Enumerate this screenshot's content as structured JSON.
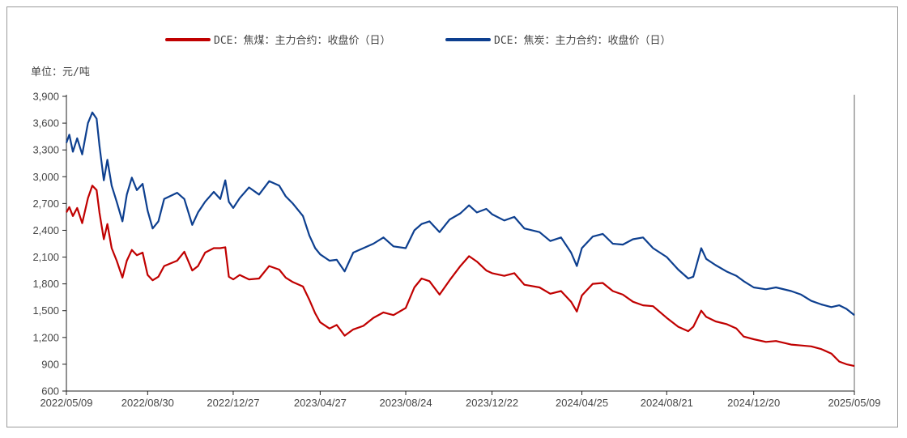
{
  "chart_data": {
    "type": "line",
    "unit_label": "单位：元/吨",
    "ylim": [
      600,
      3900
    ],
    "y_ticks": [
      "3,900",
      "3,600",
      "3,300",
      "3,000",
      "2,700",
      "2,400",
      "2,100",
      "1,800",
      "1,500",
      "1,200",
      "900",
      "600"
    ],
    "y_tick_values": [
      3900,
      3600,
      3300,
      3000,
      2700,
      2400,
      2100,
      1800,
      1500,
      1200,
      900,
      600
    ],
    "x_ticks": [
      "2022/05/09",
      "2022/08/30",
      "2022/12/27",
      "2023/04/27",
      "2023/08/24",
      "2023/12/22",
      "2024/04/25",
      "2024/08/21",
      "2024/12/20",
      "2025/05/09"
    ],
    "x_tick_dates": [
      "2022-05-09",
      "2022-08-30",
      "2022-12-27",
      "2023-04-27",
      "2023-08-24",
      "2023-12-22",
      "2024-04-25",
      "2024-08-21",
      "2024-12-20",
      "2025-05-09"
    ],
    "grid": false,
    "legend_position": "top",
    "series": [
      {
        "name": "DCE：焦煤：主力合约：收盘价（日）",
        "color": "#c00000",
        "points": [
          [
            "2022-05-09",
            2600
          ],
          [
            "2022-05-13",
            2660
          ],
          [
            "2022-05-18",
            2560
          ],
          [
            "2022-05-24",
            2650
          ],
          [
            "2022-05-31",
            2480
          ],
          [
            "2022-06-08",
            2760
          ],
          [
            "2022-06-14",
            2900
          ],
          [
            "2022-06-20",
            2850
          ],
          [
            "2022-06-24",
            2600
          ],
          [
            "2022-06-30",
            2300
          ],
          [
            "2022-07-05",
            2470
          ],
          [
            "2022-07-11",
            2200
          ],
          [
            "2022-07-18",
            2060
          ],
          [
            "2022-07-26",
            1870
          ],
          [
            "2022-08-01",
            2060
          ],
          [
            "2022-08-08",
            2180
          ],
          [
            "2022-08-15",
            2120
          ],
          [
            "2022-08-23",
            2150
          ],
          [
            "2022-08-30",
            1900
          ],
          [
            "2022-09-06",
            1840
          ],
          [
            "2022-09-14",
            1880
          ],
          [
            "2022-09-22",
            2000
          ],
          [
            "2022-10-10",
            2060
          ],
          [
            "2022-10-20",
            2160
          ],
          [
            "2022-10-31",
            1950
          ],
          [
            "2022-11-08",
            2000
          ],
          [
            "2022-11-18",
            2150
          ],
          [
            "2022-11-30",
            2200
          ],
          [
            "2022-12-09",
            2200
          ],
          [
            "2022-12-16",
            2210
          ],
          [
            "2022-12-21",
            1880
          ],
          [
            "2022-12-27",
            1850
          ],
          [
            "2023-01-05",
            1900
          ],
          [
            "2023-01-18",
            1850
          ],
          [
            "2023-02-01",
            1860
          ],
          [
            "2023-02-15",
            2000
          ],
          [
            "2023-03-01",
            1960
          ],
          [
            "2023-03-10",
            1870
          ],
          [
            "2023-03-20",
            1820
          ],
          [
            "2023-04-03",
            1770
          ],
          [
            "2023-04-12",
            1620
          ],
          [
            "2023-04-20",
            1470
          ],
          [
            "2023-04-27",
            1370
          ],
          [
            "2023-05-10",
            1300
          ],
          [
            "2023-05-20",
            1340
          ],
          [
            "2023-05-31",
            1220
          ],
          [
            "2023-06-12",
            1290
          ],
          [
            "2023-06-26",
            1330
          ],
          [
            "2023-07-10",
            1420
          ],
          [
            "2023-07-24",
            1480
          ],
          [
            "2023-08-07",
            1450
          ],
          [
            "2023-08-24",
            1530
          ],
          [
            "2023-09-05",
            1760
          ],
          [
            "2023-09-15",
            1860
          ],
          [
            "2023-09-26",
            1830
          ],
          [
            "2023-10-10",
            1680
          ],
          [
            "2023-10-24",
            1840
          ],
          [
            "2023-11-08",
            2000
          ],
          [
            "2023-11-20",
            2110
          ],
          [
            "2023-12-01",
            2050
          ],
          [
            "2023-12-14",
            1950
          ],
          [
            "2023-12-22",
            1920
          ],
          [
            "2024-01-08",
            1890
          ],
          [
            "2024-01-22",
            1920
          ],
          [
            "2024-02-05",
            1790
          ],
          [
            "2024-02-26",
            1760
          ],
          [
            "2024-03-12",
            1690
          ],
          [
            "2024-03-27",
            1720
          ],
          [
            "2024-04-10",
            1600
          ],
          [
            "2024-04-18",
            1490
          ],
          [
            "2024-04-25",
            1670
          ],
          [
            "2024-05-10",
            1800
          ],
          [
            "2024-05-24",
            1810
          ],
          [
            "2024-06-07",
            1720
          ],
          [
            "2024-06-21",
            1680
          ],
          [
            "2024-07-05",
            1600
          ],
          [
            "2024-07-19",
            1560
          ],
          [
            "2024-08-02",
            1550
          ],
          [
            "2024-08-21",
            1420
          ],
          [
            "2024-09-06",
            1320
          ],
          [
            "2024-09-20",
            1270
          ],
          [
            "2024-09-27",
            1320
          ],
          [
            "2024-10-08",
            1500
          ],
          [
            "2024-10-15",
            1430
          ],
          [
            "2024-10-28",
            1380
          ],
          [
            "2024-11-12",
            1350
          ],
          [
            "2024-11-26",
            1300
          ],
          [
            "2024-12-06",
            1210
          ],
          [
            "2024-12-20",
            1180
          ],
          [
            "2025-01-06",
            1150
          ],
          [
            "2025-01-20",
            1160
          ],
          [
            "2025-02-10",
            1120
          ],
          [
            "2025-02-24",
            1110
          ],
          [
            "2025-03-10",
            1100
          ],
          [
            "2025-03-24",
            1070
          ],
          [
            "2025-04-07",
            1020
          ],
          [
            "2025-04-18",
            930
          ],
          [
            "2025-04-28",
            900
          ],
          [
            "2025-05-09",
            880
          ]
        ]
      },
      {
        "name": "DCE：焦炭：主力合约：收盘价（日）",
        "color": "#0d3f8f",
        "points": [
          [
            "2022-05-09",
            3380
          ],
          [
            "2022-05-13",
            3470
          ],
          [
            "2022-05-18",
            3280
          ],
          [
            "2022-05-24",
            3430
          ],
          [
            "2022-05-31",
            3250
          ],
          [
            "2022-06-08",
            3600
          ],
          [
            "2022-06-14",
            3720
          ],
          [
            "2022-06-20",
            3650
          ],
          [
            "2022-06-24",
            3350
          ],
          [
            "2022-06-30",
            2960
          ],
          [
            "2022-07-05",
            3190
          ],
          [
            "2022-07-11",
            2900
          ],
          [
            "2022-07-18",
            2720
          ],
          [
            "2022-07-26",
            2500
          ],
          [
            "2022-08-01",
            2800
          ],
          [
            "2022-08-08",
            2990
          ],
          [
            "2022-08-15",
            2850
          ],
          [
            "2022-08-23",
            2920
          ],
          [
            "2022-08-30",
            2620
          ],
          [
            "2022-09-06",
            2420
          ],
          [
            "2022-09-14",
            2500
          ],
          [
            "2022-09-22",
            2750
          ],
          [
            "2022-10-10",
            2820
          ],
          [
            "2022-10-20",
            2750
          ],
          [
            "2022-10-31",
            2460
          ],
          [
            "2022-11-08",
            2600
          ],
          [
            "2022-11-18",
            2720
          ],
          [
            "2022-11-30",
            2830
          ],
          [
            "2022-12-09",
            2750
          ],
          [
            "2022-12-16",
            2960
          ],
          [
            "2022-12-21",
            2720
          ],
          [
            "2022-12-27",
            2650
          ],
          [
            "2023-01-05",
            2760
          ],
          [
            "2023-01-18",
            2880
          ],
          [
            "2023-02-01",
            2800
          ],
          [
            "2023-02-15",
            2950
          ],
          [
            "2023-03-01",
            2900
          ],
          [
            "2023-03-10",
            2780
          ],
          [
            "2023-03-20",
            2700
          ],
          [
            "2023-04-03",
            2560
          ],
          [
            "2023-04-12",
            2340
          ],
          [
            "2023-04-20",
            2200
          ],
          [
            "2023-04-27",
            2130
          ],
          [
            "2023-05-10",
            2060
          ],
          [
            "2023-05-20",
            2070
          ],
          [
            "2023-05-31",
            1940
          ],
          [
            "2023-06-12",
            2150
          ],
          [
            "2023-06-26",
            2200
          ],
          [
            "2023-07-10",
            2250
          ],
          [
            "2023-07-24",
            2320
          ],
          [
            "2023-08-07",
            2220
          ],
          [
            "2023-08-24",
            2200
          ],
          [
            "2023-09-05",
            2400
          ],
          [
            "2023-09-15",
            2470
          ],
          [
            "2023-09-26",
            2500
          ],
          [
            "2023-10-10",
            2380
          ],
          [
            "2023-10-24",
            2520
          ],
          [
            "2023-11-08",
            2590
          ],
          [
            "2023-11-20",
            2680
          ],
          [
            "2023-12-01",
            2600
          ],
          [
            "2023-12-14",
            2640
          ],
          [
            "2023-12-22",
            2580
          ],
          [
            "2024-01-08",
            2510
          ],
          [
            "2024-01-22",
            2550
          ],
          [
            "2024-02-05",
            2420
          ],
          [
            "2024-02-26",
            2380
          ],
          [
            "2024-03-12",
            2280
          ],
          [
            "2024-03-27",
            2320
          ],
          [
            "2024-04-10",
            2150
          ],
          [
            "2024-04-18",
            2000
          ],
          [
            "2024-04-25",
            2200
          ],
          [
            "2024-05-10",
            2330
          ],
          [
            "2024-05-24",
            2360
          ],
          [
            "2024-06-07",
            2250
          ],
          [
            "2024-06-21",
            2240
          ],
          [
            "2024-07-05",
            2300
          ],
          [
            "2024-07-19",
            2320
          ],
          [
            "2024-08-02",
            2200
          ],
          [
            "2024-08-21",
            2100
          ],
          [
            "2024-09-06",
            1960
          ],
          [
            "2024-09-20",
            1860
          ],
          [
            "2024-09-27",
            1880
          ],
          [
            "2024-10-08",
            2200
          ],
          [
            "2024-10-15",
            2080
          ],
          [
            "2024-10-28",
            2010
          ],
          [
            "2024-11-12",
            1940
          ],
          [
            "2024-11-26",
            1890
          ],
          [
            "2024-12-06",
            1830
          ],
          [
            "2024-12-20",
            1760
          ],
          [
            "2025-01-06",
            1740
          ],
          [
            "2025-01-20",
            1760
          ],
          [
            "2025-02-10",
            1720
          ],
          [
            "2025-02-24",
            1680
          ],
          [
            "2025-03-10",
            1610
          ],
          [
            "2025-03-24",
            1570
          ],
          [
            "2025-04-07",
            1540
          ],
          [
            "2025-04-18",
            1560
          ],
          [
            "2025-04-28",
            1520
          ],
          [
            "2025-05-09",
            1450
          ]
        ]
      }
    ]
  }
}
